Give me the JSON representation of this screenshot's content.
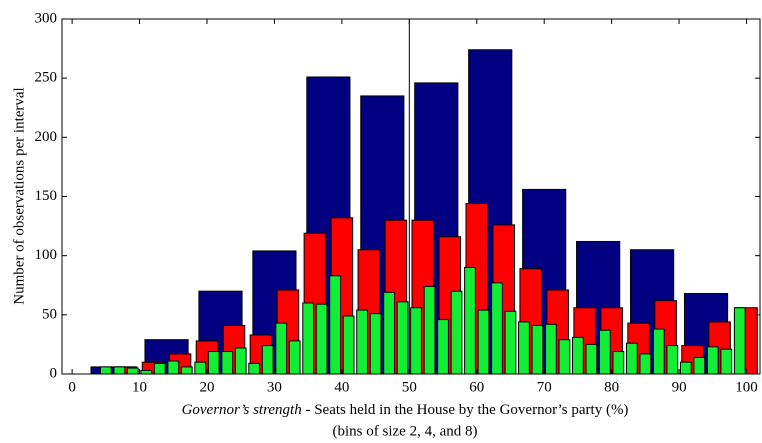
{
  "chart_data": {
    "type": "histogram",
    "xlabel_italic": "Governor’s strength",
    "xlabel": " - Seats held in the House by the Governor’s party (%)",
    "xlabel2": "(bins of size 2, 4, and 8)",
    "ylabel": "Number of observations per interval",
    "xlim": [
      -1.5,
      102
    ],
    "ylim": [
      0,
      300
    ],
    "xticks": [
      0,
      10,
      20,
      30,
      40,
      50,
      60,
      70,
      80,
      90,
      100
    ],
    "yticks": [
      0,
      50,
      100,
      150,
      200,
      250,
      300
    ],
    "vline": 50,
    "series": [
      {
        "color": "#000080",
        "bins": [
          2,
          10,
          18,
          26,
          34,
          42,
          50,
          58,
          66,
          74,
          82,
          90,
          98
        ],
        "values": [
          6,
          29,
          70,
          104,
          251,
          235,
          246,
          274,
          156,
          112,
          105,
          68
        ]
      },
      {
        "color": "#ff0000",
        "bins": [
          6,
          10,
          14,
          18,
          22,
          26,
          30,
          34,
          38,
          42,
          46,
          50,
          54,
          58,
          62,
          66,
          70,
          74,
          78,
          82,
          86,
          90,
          94,
          98,
          102
        ],
        "values": [
          6,
          10,
          17,
          28,
          41,
          33,
          71,
          119,
          132,
          105,
          130,
          130,
          116,
          144,
          126,
          89,
          71,
          56,
          56,
          43,
          62,
          24,
          44,
          56
        ]
      },
      {
        "color": "#11ee33",
        "bins": [
          4,
          6,
          8,
          10,
          12,
          14,
          16,
          18,
          20,
          22,
          24,
          26,
          28,
          30,
          32,
          34,
          36,
          38,
          40,
          42,
          44,
          46,
          48,
          50,
          52,
          54,
          56,
          58,
          60,
          62,
          64,
          66,
          68,
          70,
          72,
          74,
          76,
          78,
          80,
          82,
          84,
          86,
          88,
          90,
          92,
          94,
          96,
          98,
          100
        ],
        "values": [
          6,
          6,
          5,
          3,
          9,
          11,
          6,
          10,
          19,
          19,
          22,
          9,
          24,
          43,
          28,
          60,
          59,
          83,
          49,
          54,
          51,
          69,
          61,
          56,
          74,
          46,
          70,
          90,
          54,
          77,
          53,
          44,
          41,
          42,
          29,
          31,
          25,
          37,
          19,
          26,
          17,
          38,
          24,
          10,
          14,
          23,
          21,
          56
        ]
      }
    ]
  }
}
